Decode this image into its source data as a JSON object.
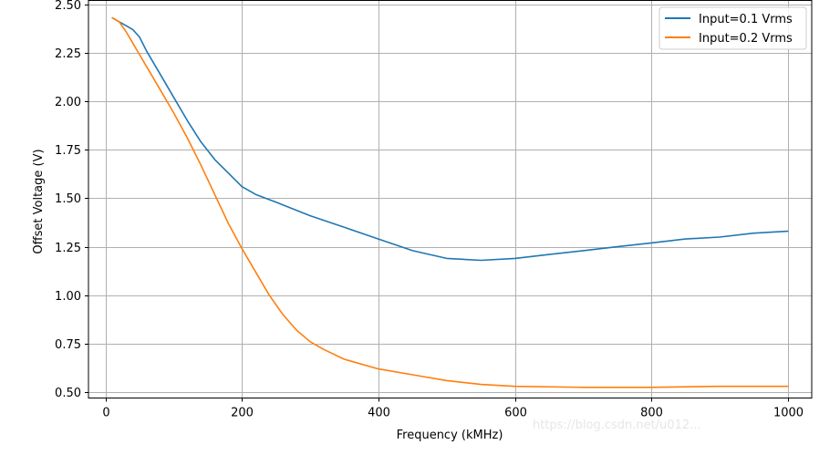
{
  "chart_data": {
    "type": "line",
    "title": "",
    "xlabel": "Frequency (kMHz)",
    "ylabel": "Offset Voltage (V)",
    "xlim": [
      -25,
      1035
    ],
    "ylim": [
      0.47,
      2.52
    ],
    "xticks": [
      0,
      200,
      400,
      600,
      800,
      1000
    ],
    "xtick_labels": [
      "0",
      "200",
      "400",
      "600",
      "800",
      "1000"
    ],
    "yticks": [
      0.5,
      0.75,
      1.0,
      1.25,
      1.5,
      1.75,
      2.0,
      2.25,
      2.5
    ],
    "ytick_labels": [
      "0.50",
      "0.75",
      "1.00",
      "1.25",
      "1.50",
      "1.75",
      "2.00",
      "2.25",
      "2.50"
    ],
    "grid": true,
    "legend_position": "top-right",
    "series": [
      {
        "name": "Input=0.1 Vrms",
        "color": "#1f77b4",
        "x": [
          10,
          20,
          30,
          40,
          50,
          60,
          80,
          100,
          120,
          140,
          160,
          180,
          200,
          220,
          250,
          300,
          350,
          400,
          450,
          500,
          550,
          600,
          650,
          700,
          750,
          800,
          850,
          900,
          950,
          1000
        ],
        "y": [
          2.43,
          2.41,
          2.39,
          2.37,
          2.33,
          2.26,
          2.14,
          2.02,
          1.9,
          1.79,
          1.7,
          1.63,
          1.56,
          1.52,
          1.48,
          1.41,
          1.35,
          1.29,
          1.23,
          1.19,
          1.18,
          1.19,
          1.21,
          1.23,
          1.25,
          1.27,
          1.29,
          1.3,
          1.32,
          1.33
        ]
      },
      {
        "name": "Input=0.2 Vrms",
        "color": "#ff7f0e",
        "x": [
          10,
          20,
          30,
          40,
          50,
          60,
          80,
          100,
          120,
          140,
          160,
          180,
          200,
          220,
          240,
          260,
          280,
          300,
          320,
          350,
          400,
          450,
          500,
          550,
          600,
          700,
          800,
          900,
          1000
        ],
        "y": [
          2.43,
          2.41,
          2.36,
          2.3,
          2.24,
          2.18,
          2.06,
          1.94,
          1.81,
          1.67,
          1.52,
          1.37,
          1.24,
          1.12,
          1.0,
          0.9,
          0.82,
          0.76,
          0.72,
          0.67,
          0.62,
          0.59,
          0.56,
          0.54,
          0.53,
          0.525,
          0.525,
          0.53,
          0.53
        ]
      }
    ]
  },
  "watermark": {
    "text": "https://blog.csdn.net/u012..."
  }
}
